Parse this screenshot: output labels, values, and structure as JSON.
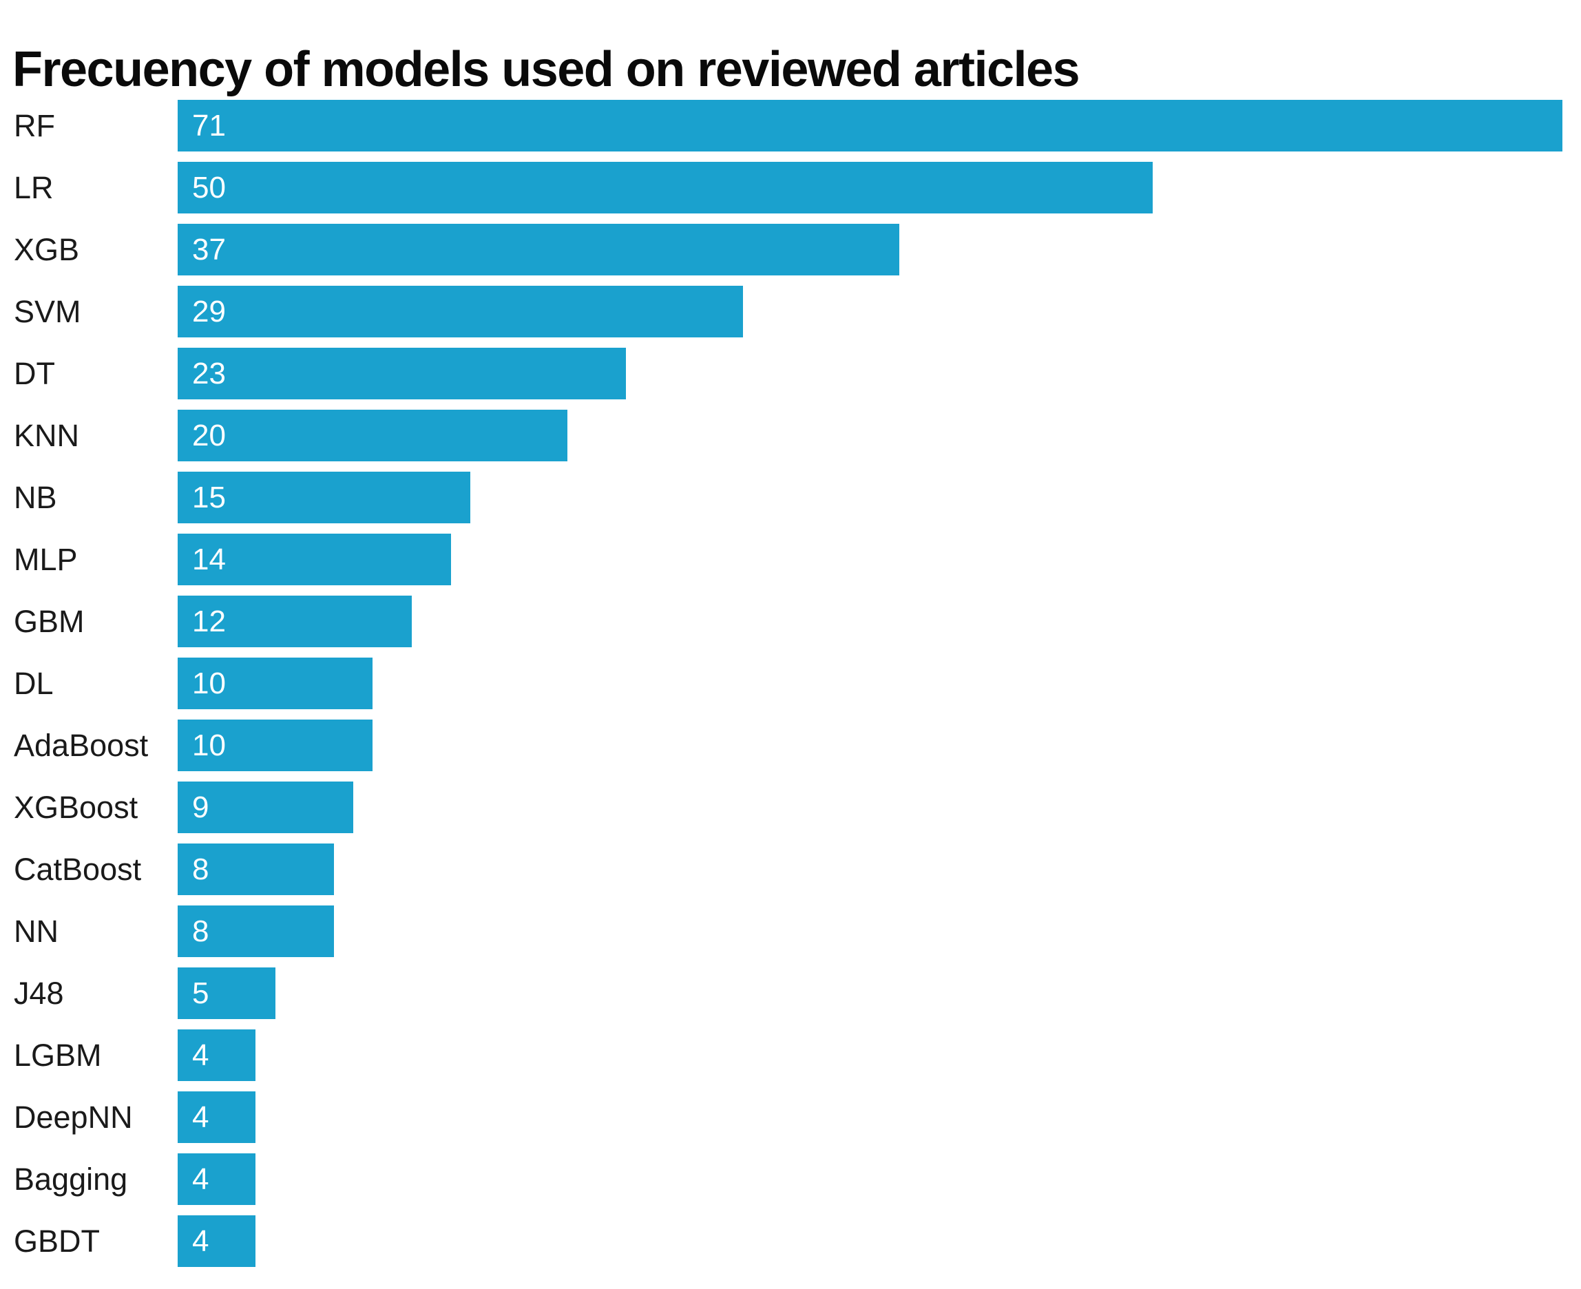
{
  "title": "Frecuency of models used on reviewed articles",
  "colors": {
    "bar": "#1AA1CE",
    "title_text": "#0A0A0A",
    "category_text": "#1A1A1A",
    "value_text": "#FFFFFF",
    "background": "#FFFFFF"
  },
  "chart_data": {
    "type": "bar",
    "orientation": "horizontal",
    "title": "Frecuency of models used on reviewed articles",
    "xlabel": "",
    "ylabel": "",
    "xlim": [
      0,
      71
    ],
    "grid": false,
    "legend": false,
    "value_labels": "inside-bar-start",
    "categories": [
      "RF",
      "LR",
      "XGB",
      "SVM",
      "DT",
      "KNN",
      "NB",
      "MLP",
      "GBM",
      "DL",
      "AdaBoost",
      "XGBoost",
      "CatBoost",
      "NN",
      "J48",
      "LGBM",
      "DeepNN",
      "Bagging",
      "GBDT"
    ],
    "values": [
      71,
      50,
      37,
      29,
      23,
      20,
      15,
      14,
      12,
      10,
      10,
      9,
      8,
      8,
      5,
      4,
      4,
      4,
      4
    ]
  }
}
